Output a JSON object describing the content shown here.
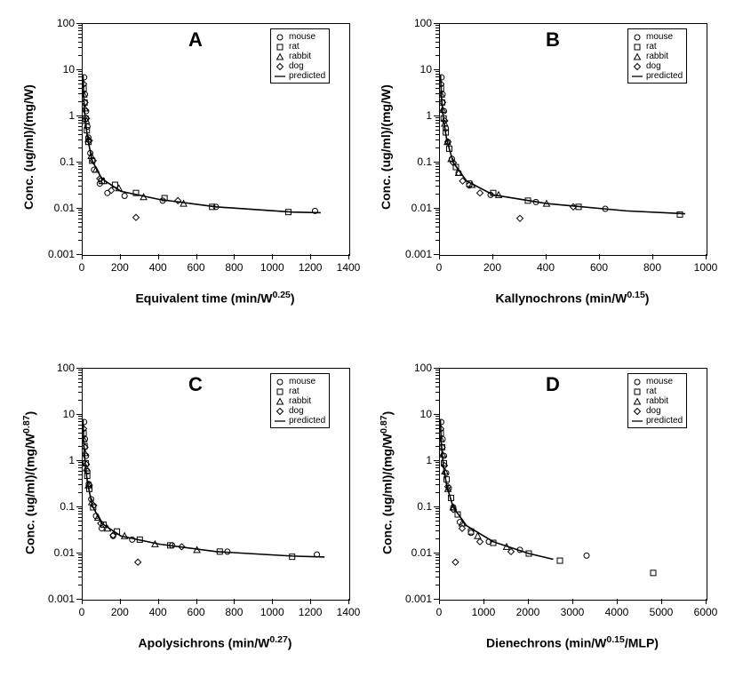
{
  "figure_width": 827,
  "figure_height": 771,
  "background_color": "#ffffff",
  "axis_color": "#000000",
  "marker_stroke": "#000000",
  "line_color": "#000000",
  "fonts": {
    "axis_label_fontsize": 14,
    "axis_label_weight": "bold",
    "tick_fontsize": 12,
    "panel_letter_fontsize": 22,
    "legend_fontsize": 10
  },
  "y_axis": {
    "scale": "log",
    "min": 0.001,
    "max": 100,
    "ticks": [
      0.001,
      0.01,
      0.1,
      1,
      10,
      100
    ],
    "tick_labels": [
      "0.001",
      "0.01",
      "0.1",
      "1",
      "10",
      "100"
    ]
  },
  "legend_items": [
    {
      "marker": "circle",
      "label": "mouse"
    },
    {
      "marker": "square",
      "label": "rat"
    },
    {
      "marker": "triangle",
      "label": "rabbit"
    },
    {
      "marker": "diamond",
      "label": "dog"
    },
    {
      "marker": "line",
      "label": "predicted"
    }
  ],
  "panels": {
    "A": {
      "letter": "A",
      "xlabel_html": "Equivalent time (min/W<sup>0.25</sup>)",
      "ylabel_html": "Conc. (ug/ml)/(mg/W)",
      "xlim": [
        0,
        1400
      ],
      "x_ticks": [
        0,
        200,
        400,
        600,
        800,
        1000,
        1200,
        1400
      ],
      "x_tick_labels": [
        "0",
        "200",
        "400",
        "600",
        "800",
        "1000",
        "1200",
        "1400"
      ],
      "series": {
        "mouse": [
          [
            8,
            7
          ],
          [
            12,
            3
          ],
          [
            18,
            1.3
          ],
          [
            25,
            0.6
          ],
          [
            30,
            0.35
          ],
          [
            40,
            0.16
          ],
          [
            60,
            0.07
          ],
          [
            90,
            0.035
          ],
          [
            130,
            0.022
          ],
          [
            220,
            0.019
          ],
          [
            420,
            0.015
          ],
          [
            700,
            0.011
          ],
          [
            1220,
            0.009
          ]
        ],
        "rat": [
          [
            5,
            4
          ],
          [
            10,
            2
          ],
          [
            15,
            0.9
          ],
          [
            22,
            0.5
          ],
          [
            30,
            0.28
          ],
          [
            50,
            0.11
          ],
          [
            100,
            0.04
          ],
          [
            170,
            0.033
          ],
          [
            280,
            0.022
          ],
          [
            430,
            0.017
          ],
          [
            680,
            0.011
          ],
          [
            1080,
            0.0085
          ]
        ],
        "rabbit": [
          [
            6,
            3
          ],
          [
            12,
            1.5
          ],
          [
            20,
            0.8
          ],
          [
            30,
            0.32
          ],
          [
            45,
            0.14
          ],
          [
            70,
            0.07
          ],
          [
            110,
            0.04
          ],
          [
            190,
            0.028
          ],
          [
            320,
            0.018
          ],
          [
            530,
            0.013
          ]
        ],
        "dog": [
          [
            5,
            5
          ],
          [
            12,
            2
          ],
          [
            20,
            0.9
          ],
          [
            35,
            0.3
          ],
          [
            55,
            0.11
          ],
          [
            90,
            0.045
          ],
          [
            150,
            0.025
          ],
          [
            280,
            0.0065
          ],
          [
            500,
            0.015
          ]
        ]
      },
      "predicted_line": [
        [
          2,
          8
        ],
        [
          6,
          2.5
        ],
        [
          12,
          1.0
        ],
        [
          25,
          0.35
        ],
        [
          50,
          0.11
        ],
        [
          100,
          0.045
        ],
        [
          200,
          0.024
        ],
        [
          400,
          0.016
        ],
        [
          700,
          0.011
        ],
        [
          1100,
          0.0085
        ],
        [
          1250,
          0.0082
        ]
      ]
    },
    "B": {
      "letter": "B",
      "xlabel_html": "Kallynochrons (min/W<sup>0.15</sup>)",
      "ylabel_html": "Conc. (ug/ml)/(mg/W)",
      "xlim": [
        0,
        1000
      ],
      "x_ticks": [
        0,
        200,
        400,
        600,
        800,
        1000
      ],
      "x_tick_labels": [
        "0",
        "200",
        "400",
        "600",
        "800",
        "1000"
      ],
      "series": {
        "mouse": [
          [
            6,
            7
          ],
          [
            10,
            3
          ],
          [
            15,
            1.3
          ],
          [
            22,
            0.55
          ],
          [
            30,
            0.28
          ],
          [
            45,
            0.12
          ],
          [
            70,
            0.06
          ],
          [
            110,
            0.032
          ],
          [
            190,
            0.02
          ],
          [
            360,
            0.014
          ],
          [
            620,
            0.01
          ]
        ],
        "rat": [
          [
            4,
            4
          ],
          [
            8,
            2
          ],
          [
            14,
            0.9
          ],
          [
            22,
            0.45
          ],
          [
            35,
            0.2
          ],
          [
            60,
            0.08
          ],
          [
            110,
            0.035
          ],
          [
            200,
            0.022
          ],
          [
            330,
            0.015
          ],
          [
            520,
            0.011
          ],
          [
            900,
            0.0075
          ]
        ],
        "rabbit": [
          [
            5,
            3
          ],
          [
            10,
            1.4
          ],
          [
            18,
            0.7
          ],
          [
            28,
            0.28
          ],
          [
            42,
            0.12
          ],
          [
            70,
            0.06
          ],
          [
            120,
            0.033
          ],
          [
            220,
            0.02
          ],
          [
            400,
            0.013
          ]
        ],
        "dog": [
          [
            4,
            5
          ],
          [
            10,
            2
          ],
          [
            18,
            0.8
          ],
          [
            30,
            0.28
          ],
          [
            50,
            0.1
          ],
          [
            85,
            0.04
          ],
          [
            150,
            0.022
          ],
          [
            300,
            0.0062
          ],
          [
            500,
            0.011
          ]
        ]
      },
      "predicted_line": [
        [
          2,
          8
        ],
        [
          6,
          2.5
        ],
        [
          12,
          1.0
        ],
        [
          25,
          0.32
        ],
        [
          50,
          0.1
        ],
        [
          100,
          0.04
        ],
        [
          200,
          0.02
        ],
        [
          400,
          0.013
        ],
        [
          700,
          0.009
        ],
        [
          920,
          0.0078
        ]
      ]
    },
    "C": {
      "letter": "C",
      "xlabel_html": "Apolysichrons (min/W<sup>0.27</sup>)",
      "ylabel_html": "Conc. (ug/ml)/(mg/W<sup>0.87</sup>)",
      "xlim": [
        0,
        1400
      ],
      "x_ticks": [
        0,
        200,
        400,
        600,
        800,
        1000,
        1200,
        1400
      ],
      "x_tick_labels": [
        "0",
        "200",
        "400",
        "600",
        "800",
        "1000",
        "1200",
        "1400"
      ],
      "series": {
        "mouse": [
          [
            8,
            7
          ],
          [
            12,
            3
          ],
          [
            18,
            1.3
          ],
          [
            25,
            0.6
          ],
          [
            32,
            0.32
          ],
          [
            45,
            0.15
          ],
          [
            70,
            0.065
          ],
          [
            100,
            0.035
          ],
          [
            160,
            0.024
          ],
          [
            260,
            0.02
          ],
          [
            470,
            0.015
          ],
          [
            760,
            0.011
          ],
          [
            1230,
            0.0095
          ]
        ],
        "rat": [
          [
            5,
            4
          ],
          [
            10,
            2.1
          ],
          [
            16,
            0.9
          ],
          [
            24,
            0.48
          ],
          [
            35,
            0.25
          ],
          [
            55,
            0.1
          ],
          [
            110,
            0.042
          ],
          [
            180,
            0.03
          ],
          [
            300,
            0.02
          ],
          [
            460,
            0.015
          ],
          [
            720,
            0.011
          ],
          [
            1100,
            0.0085
          ]
        ],
        "rabbit": [
          [
            6,
            3
          ],
          [
            12,
            1.5
          ],
          [
            20,
            0.7
          ],
          [
            30,
            0.3
          ],
          [
            48,
            0.13
          ],
          [
            80,
            0.06
          ],
          [
            130,
            0.035
          ],
          [
            220,
            0.024
          ],
          [
            380,
            0.016
          ],
          [
            600,
            0.012
          ]
        ],
        "dog": [
          [
            5,
            5
          ],
          [
            12,
            2
          ],
          [
            20,
            0.85
          ],
          [
            35,
            0.3
          ],
          [
            58,
            0.11
          ],
          [
            95,
            0.045
          ],
          [
            160,
            0.025
          ],
          [
            290,
            0.0065
          ],
          [
            520,
            0.014
          ]
        ]
      },
      "predicted_line": [
        [
          2,
          8
        ],
        [
          6,
          2.5
        ],
        [
          12,
          1.0
        ],
        [
          25,
          0.35
        ],
        [
          50,
          0.11
        ],
        [
          100,
          0.045
        ],
        [
          200,
          0.024
        ],
        [
          400,
          0.016
        ],
        [
          700,
          0.011
        ],
        [
          1100,
          0.0088
        ],
        [
          1270,
          0.0084
        ]
      ]
    },
    "D": {
      "letter": "D",
      "xlabel_html": "Dienechrons (min/W<sup>0.15</sup>/MLP)",
      "ylabel_html": "Conc. (ug/ml)/(mg/W<sup>0.87</sup>)",
      "xlim": [
        0,
        6000
      ],
      "x_ticks": [
        0,
        1000,
        2000,
        3000,
        4000,
        5000,
        6000
      ],
      "x_tick_labels": [
        "0",
        "1000",
        "2000",
        "3000",
        "4000",
        "5000",
        "6000"
      ],
      "series": {
        "mouse": [
          [
            30,
            7
          ],
          [
            60,
            3
          ],
          [
            90,
            1.3
          ],
          [
            140,
            0.55
          ],
          [
            200,
            0.26
          ],
          [
            300,
            0.1
          ],
          [
            450,
            0.048
          ],
          [
            700,
            0.028
          ],
          [
            1100,
            0.018
          ],
          [
            1800,
            0.012
          ],
          [
            3300,
            0.009
          ]
        ],
        "rat": [
          [
            20,
            4
          ],
          [
            50,
            2
          ],
          [
            90,
            0.9
          ],
          [
            150,
            0.4
          ],
          [
            250,
            0.16
          ],
          [
            400,
            0.07
          ],
          [
            700,
            0.03
          ],
          [
            1200,
            0.017
          ],
          [
            2000,
            0.01
          ],
          [
            2700,
            0.007
          ],
          [
            4800,
            0.0038
          ]
        ],
        "rabbit": [
          [
            25,
            3
          ],
          [
            60,
            1.4
          ],
          [
            110,
            0.6
          ],
          [
            180,
            0.25
          ],
          [
            300,
            0.1
          ],
          [
            500,
            0.045
          ],
          [
            850,
            0.024
          ],
          [
            1500,
            0.014
          ]
        ],
        "dog": [
          [
            20,
            5
          ],
          [
            50,
            2
          ],
          [
            100,
            0.8
          ],
          [
            180,
            0.28
          ],
          [
            300,
            0.09
          ],
          [
            500,
            0.035
          ],
          [
            350,
            0.0065
          ],
          [
            900,
            0.018
          ],
          [
            1600,
            0.011
          ]
        ]
      },
      "predicted_line": [
        [
          10,
          8
        ],
        [
          30,
          2.5
        ],
        [
          70,
          0.9
        ],
        [
          150,
          0.3
        ],
        [
          300,
          0.1
        ],
        [
          600,
          0.04
        ],
        [
          1200,
          0.018
        ],
        [
          2000,
          0.01
        ],
        [
          2550,
          0.0075
        ]
      ]
    }
  }
}
